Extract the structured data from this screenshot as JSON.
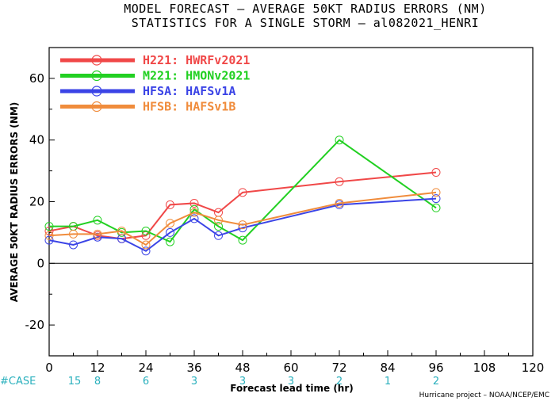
{
  "title_line1": "MODEL FORECAST – AVERAGE 50KT RADIUS ERRORS (NM)",
  "title_line2": "STATISTICS FOR A SINGLE STORM – al082021_HENRI",
  "credit": "Hurricane project – NOAA/NCEP/EMC",
  "case_label": "#CASE",
  "cases": [
    {
      "x": 0,
      "n": "15"
    },
    {
      "x": 12,
      "n": "8"
    },
    {
      "x": 24,
      "n": "6"
    },
    {
      "x": 36,
      "n": "3"
    },
    {
      "x": 48,
      "n": "3"
    },
    {
      "x": 60,
      "n": "3"
    },
    {
      "x": 72,
      "n": "2"
    },
    {
      "x": 84,
      "n": "1"
    },
    {
      "x": 96,
      "n": "2"
    }
  ],
  "colors": {
    "zero_line": "#000000",
    "case_text": "#2ab0bd"
  },
  "chart_data": {
    "type": "line",
    "title": "MODEL FORECAST – AVERAGE 50KT RADIUS ERRORS (NM)",
    "subtitle": "STATISTICS FOR A SINGLE STORM – al082021_HENRI",
    "xlabel": "Forecast lead time (hr)",
    "ylabel": "AVERAGE 50KT RADIUS ERRORS (NM)",
    "xlim": [
      0,
      120
    ],
    "ylim": [
      -30,
      70
    ],
    "xticks": [
      0,
      12,
      24,
      36,
      48,
      60,
      72,
      84,
      96,
      108,
      120
    ],
    "yticks": [
      -20,
      0,
      20,
      40,
      60
    ],
    "grid": false,
    "legend": "top-left",
    "series": [
      {
        "name": "H221: HWRFv2021",
        "color": "#f04848",
        "x": [
          0,
          6,
          12,
          18,
          24,
          30,
          36,
          42,
          48,
          72,
          96
        ],
        "y": [
          10.5,
          12,
          9,
          8,
          9,
          19,
          19.5,
          16.5,
          23,
          26.5,
          29.5
        ]
      },
      {
        "name": "M221: HMONv2021",
        "color": "#22d022",
        "x": [
          0,
          6,
          12,
          18,
          24,
          30,
          36,
          42,
          48,
          72,
          96
        ],
        "y": [
          12,
          12,
          14,
          10,
          10.5,
          7,
          17.5,
          12,
          7.5,
          40,
          18
        ]
      },
      {
        "name": "HFSA: HAFSv1A",
        "color": "#3b44e6",
        "x": [
          0,
          6,
          12,
          18,
          24,
          30,
          36,
          42,
          48,
          72,
          96
        ],
        "y": [
          7.5,
          6,
          8.5,
          8,
          4,
          10,
          14.5,
          9,
          11.5,
          19,
          21
        ]
      },
      {
        "name": "HFSB: HAFSv1B",
        "color": "#f08c3c",
        "x": [
          0,
          6,
          12,
          18,
          24,
          30,
          36,
          42,
          48,
          72,
          96
        ],
        "y": [
          9,
          9.5,
          9.5,
          10.5,
          6,
          13,
          16.5,
          14,
          12.5,
          19.5,
          23
        ]
      }
    ]
  }
}
